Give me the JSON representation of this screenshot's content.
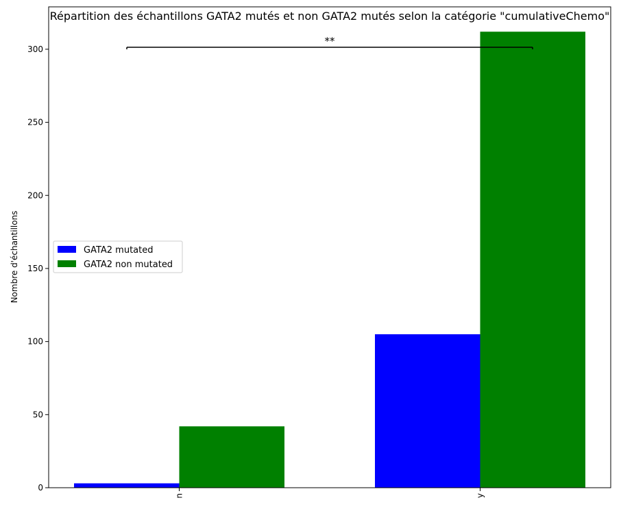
{
  "chart_data": {
    "type": "bar",
    "title": "Répartition des échantillons GATA2 mutés et non GATA2 mutés selon la catégorie \"cumulativeChemo\"",
    "xlabel": "",
    "ylabel": "Nombre d'échantillons",
    "categories": [
      "n",
      "y"
    ],
    "series": [
      {
        "name": "GATA2 mutated",
        "color": "#0000ff",
        "values": [
          3,
          105
        ]
      },
      {
        "name": "GATA2 non mutated",
        "color": "#008000",
        "values": [
          42,
          312
        ]
      }
    ],
    "ylim": [
      0,
      329
    ],
    "yticks": [
      0,
      50,
      100,
      150,
      200,
      250,
      300
    ],
    "grid": false,
    "legend_position": "center-left",
    "annotation": {
      "text": "**",
      "between": [
        "n",
        "y"
      ]
    }
  }
}
